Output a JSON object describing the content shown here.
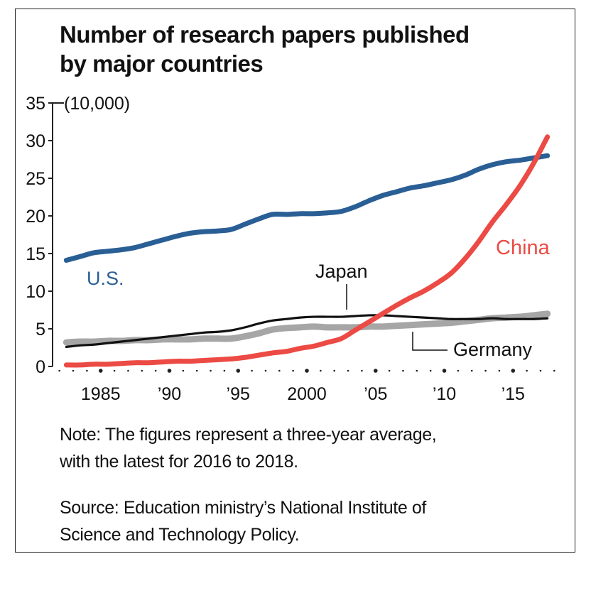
{
  "title": {
    "line1": "Number of research papers published",
    "line2": "by major countries"
  },
  "note": {
    "line1": "Note: The figures represent a three-year average,",
    "line2": "with the latest for 2016 to 2018."
  },
  "source": {
    "line1": "Source: Education ministry’s National Institute of",
    "line2": "Science and Technology Policy."
  },
  "chart_data": {
    "type": "line",
    "title": "Number of research papers published by major countries",
    "unit_label": "(10,000)",
    "ylim": [
      0,
      35
    ],
    "yticks": [
      0,
      5,
      10,
      15,
      20,
      25,
      30,
      35
    ],
    "ytick_labels": [
      "0",
      "5",
      "10",
      "15",
      "20",
      "25",
      "30",
      "35"
    ],
    "xlim": [
      1981,
      2018
    ],
    "xticks": [
      1985,
      1990,
      1995,
      2000,
      2005,
      2010,
      2015
    ],
    "xtick_labels": [
      "1985",
      "’90",
      "’95",
      "2000",
      "’05",
      "’10",
      "’15"
    ],
    "grid": false,
    "x": [
      1982,
      1983,
      1984,
      1985,
      1986,
      1987,
      1988,
      1989,
      1990,
      1991,
      1992,
      1993,
      1994,
      1995,
      1996,
      1997,
      1998,
      1999,
      2000,
      2001,
      2002,
      2003,
      2004,
      2005,
      2006,
      2007,
      2008,
      2009,
      2010,
      2011,
      2012,
      2013,
      2014,
      2015,
      2016,
      2017
    ],
    "series": [
      {
        "name": "U.S.",
        "color": "#2a5f95",
        "values": [
          14.1,
          14.6,
          15.1,
          15.3,
          15.5,
          15.8,
          16.3,
          16.8,
          17.3,
          17.7,
          17.9,
          18.0,
          18.2,
          18.9,
          19.6,
          20.2,
          20.2,
          20.3,
          20.3,
          20.4,
          20.6,
          21.2,
          22.0,
          22.7,
          23.2,
          23.7,
          24.0,
          24.4,
          24.8,
          25.4,
          26.2,
          26.8,
          27.2,
          27.4,
          27.7,
          28.0
        ]
      },
      {
        "name": "China",
        "color": "#ec4a44",
        "values": [
          0.2,
          0.2,
          0.3,
          0.3,
          0.4,
          0.5,
          0.5,
          0.6,
          0.7,
          0.7,
          0.8,
          0.9,
          1.0,
          1.2,
          1.5,
          1.8,
          2.0,
          2.4,
          2.7,
          3.2,
          3.7,
          4.8,
          5.9,
          7.0,
          8.1,
          9.1,
          10.0,
          11.1,
          12.4,
          14.3,
          16.6,
          19.2,
          21.5,
          24.0,
          27.0,
          30.5
        ]
      },
      {
        "name": "Japan",
        "color": "#111111",
        "values": [
          2.6,
          2.8,
          2.9,
          3.1,
          3.3,
          3.5,
          3.7,
          3.9,
          4.1,
          4.3,
          4.5,
          4.6,
          4.8,
          5.2,
          5.7,
          6.1,
          6.3,
          6.5,
          6.6,
          6.6,
          6.6,
          6.7,
          6.8,
          6.8,
          6.7,
          6.6,
          6.5,
          6.4,
          6.3,
          6.3,
          6.3,
          6.4,
          6.3,
          6.3,
          6.3,
          6.4
        ]
      },
      {
        "name": "Germany",
        "color": "#a6a6a6",
        "values": [
          3.2,
          3.3,
          3.3,
          3.4,
          3.4,
          3.5,
          3.5,
          3.6,
          3.6,
          3.6,
          3.7,
          3.7,
          3.7,
          4.0,
          4.4,
          4.9,
          5.1,
          5.2,
          5.3,
          5.2,
          5.2,
          5.2,
          5.3,
          5.3,
          5.4,
          5.5,
          5.6,
          5.7,
          5.8,
          6.0,
          6.2,
          6.4,
          6.5,
          6.6,
          6.8,
          7.0
        ]
      }
    ],
    "labels": {
      "us": "U.S.",
      "china": "China",
      "japan": "Japan",
      "germany": "Germany"
    }
  }
}
